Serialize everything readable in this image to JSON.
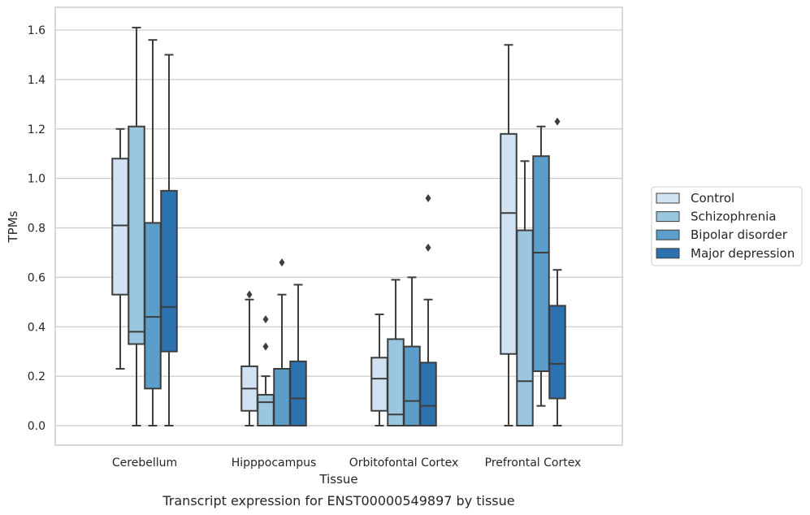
{
  "caption": "Transcript expression for ENST00000549897 by tissue",
  "chart_data": {
    "type": "box",
    "xlabel": "Tissue",
    "ylabel": "TPMs",
    "ylim": [
      -0.08,
      1.69
    ],
    "yticks": [
      "0.0",
      "0.2",
      "0.4",
      "0.6",
      "0.8",
      "1.0",
      "1.2",
      "1.4",
      "1.6"
    ],
    "grid": "horizontal",
    "legend_position": "right",
    "categories": [
      "Cerebellum",
      "Hipppocampus",
      "Orbitofontal Cortex",
      "Prefrontal Cortex"
    ],
    "series": [
      {
        "name": "Control",
        "color": "#d1e2f2",
        "boxes": [
          {
            "whislo": 0.23,
            "q1": 0.53,
            "med": 0.81,
            "q3": 1.08,
            "whishi": 1.2,
            "fliers": []
          },
          {
            "whislo": 0.0,
            "q1": 0.06,
            "med": 0.15,
            "q3": 0.24,
            "whishi": 0.51,
            "fliers": [
              0.53
            ]
          },
          {
            "whislo": 0.0,
            "q1": 0.06,
            "med": 0.19,
            "q3": 0.275,
            "whishi": 0.45,
            "fliers": []
          },
          {
            "whislo": 0.0,
            "q1": 0.29,
            "med": 0.86,
            "q3": 1.18,
            "whishi": 1.54,
            "fliers": []
          }
        ]
      },
      {
        "name": "Schizophrenia",
        "color": "#9ac6e0",
        "boxes": [
          {
            "whislo": 0.0,
            "q1": 0.33,
            "med": 0.38,
            "q3": 1.21,
            "whishi": 1.61,
            "fliers": []
          },
          {
            "whislo": 0.0,
            "q1": 0.0,
            "med": 0.095,
            "q3": 0.125,
            "whishi": 0.2,
            "fliers": [
              0.32,
              0.43
            ]
          },
          {
            "whislo": 0.0,
            "q1": 0.0,
            "med": 0.045,
            "q3": 0.35,
            "whishi": 0.59,
            "fliers": []
          },
          {
            "whislo": 0.0,
            "q1": 0.0,
            "med": 0.18,
            "q3": 0.79,
            "whishi": 1.07,
            "fliers": []
          }
        ]
      },
      {
        "name": "Bipolar disorder",
        "color": "#5b9ec9",
        "boxes": [
          {
            "whislo": 0.0,
            "q1": 0.15,
            "med": 0.44,
            "q3": 0.82,
            "whishi": 1.56,
            "fliers": []
          },
          {
            "whislo": 0.0,
            "q1": 0.0,
            "med": 0.0,
            "q3": 0.23,
            "whishi": 0.53,
            "fliers": [
              0.66
            ]
          },
          {
            "whislo": 0.0,
            "q1": 0.0,
            "med": 0.1,
            "q3": 0.32,
            "whishi": 0.6,
            "fliers": []
          },
          {
            "whislo": 0.08,
            "q1": 0.22,
            "med": 0.7,
            "q3": 1.09,
            "whishi": 1.21,
            "fliers": []
          }
        ]
      },
      {
        "name": "Major depression",
        "color": "#2d72b0",
        "boxes": [
          {
            "whislo": 0.0,
            "q1": 0.3,
            "med": 0.48,
            "q3": 0.95,
            "whishi": 1.5,
            "fliers": []
          },
          {
            "whislo": 0.0,
            "q1": 0.0,
            "med": 0.11,
            "q3": 0.26,
            "whishi": 0.57,
            "fliers": []
          },
          {
            "whislo": 0.0,
            "q1": 0.0,
            "med": 0.08,
            "q3": 0.255,
            "whishi": 0.51,
            "fliers": [
              0.72,
              0.92
            ]
          },
          {
            "whislo": 0.0,
            "q1": 0.11,
            "med": 0.25,
            "q3": 0.485,
            "whishi": 0.63,
            "fliers": [
              1.23
            ]
          }
        ]
      }
    ]
  }
}
